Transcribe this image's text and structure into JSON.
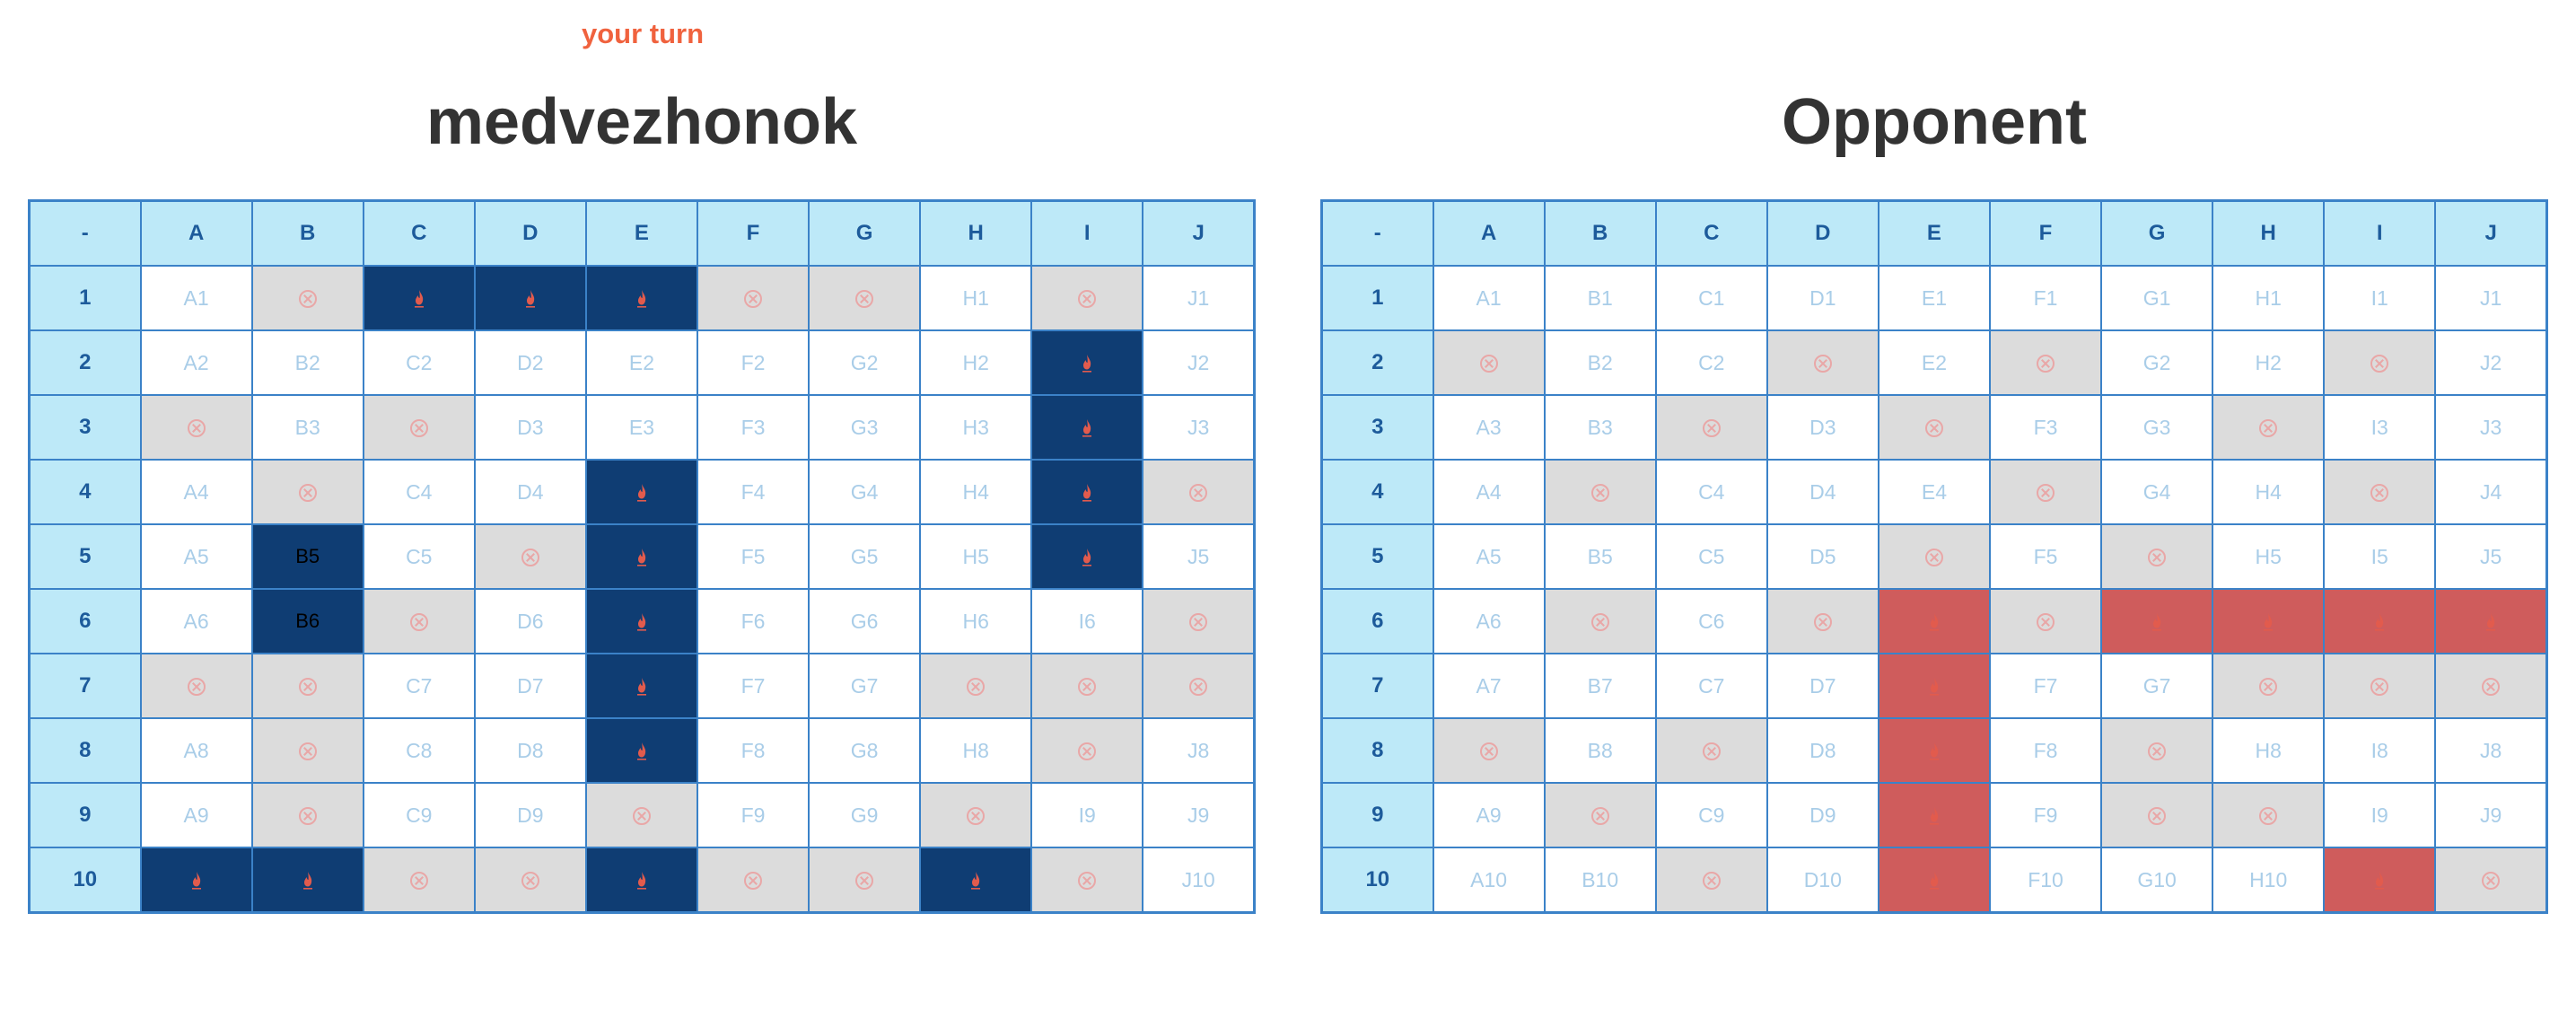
{
  "status": "your turn",
  "columns": [
    "-",
    "A",
    "B",
    "C",
    "D",
    "E",
    "F",
    "G",
    "H",
    "I",
    "J"
  ],
  "rows": [
    "1",
    "2",
    "3",
    "4",
    "5",
    "6",
    "7",
    "8",
    "9",
    "10"
  ],
  "legend_colors": {
    "miss": "#dcdcdc",
    "my_ship": "#0f3d73",
    "enemy_hit": "#cf5c5c",
    "header": "#bde9f8",
    "turn_text": "#f0623e"
  },
  "boards": [
    {
      "title": "medvezhonok",
      "grid": [
        [
          "A1",
          "miss",
          "hit",
          "hit",
          "hit",
          "miss",
          "miss",
          "H1",
          "miss",
          "J1"
        ],
        [
          "A2",
          "B2",
          "C2",
          "D2",
          "E2",
          "F2",
          "G2",
          "H2",
          "hit",
          "J2"
        ],
        [
          "miss",
          "B3",
          "miss",
          "D3",
          "E3",
          "F3",
          "G3",
          "H3",
          "hit",
          "J3"
        ],
        [
          "A4",
          "miss",
          "C4",
          "D4",
          "hit",
          "F4",
          "G4",
          "H4",
          "hit",
          "miss"
        ],
        [
          "A5",
          "ship:B5",
          "C5",
          "miss",
          "hit",
          "F5",
          "G5",
          "H5",
          "hit",
          "J5"
        ],
        [
          "A6",
          "ship:B6",
          "miss",
          "D6",
          "hit",
          "F6",
          "G6",
          "H6",
          "I6",
          "miss"
        ],
        [
          "miss",
          "miss",
          "C7",
          "D7",
          "hit",
          "F7",
          "G7",
          "miss",
          "miss",
          "miss"
        ],
        [
          "A8",
          "miss",
          "C8",
          "D8",
          "hit",
          "F8",
          "G8",
          "H8",
          "miss",
          "J8"
        ],
        [
          "A9",
          "miss",
          "C9",
          "D9",
          "miss",
          "F9",
          "G9",
          "miss",
          "I9",
          "J9"
        ],
        [
          "hit",
          "hit",
          "miss",
          "miss",
          "hit",
          "miss",
          "miss",
          "hit",
          "miss",
          "J10"
        ]
      ]
    },
    {
      "title": "Opponent",
      "grid": [
        [
          "A1",
          "B1",
          "C1",
          "D1",
          "E1",
          "F1",
          "G1",
          "H1",
          "I1",
          "J1"
        ],
        [
          "miss",
          "B2",
          "C2",
          "miss",
          "E2",
          "miss",
          "G2",
          "H2",
          "miss",
          "J2"
        ],
        [
          "A3",
          "B3",
          "miss",
          "D3",
          "miss",
          "F3",
          "G3",
          "miss",
          "I3",
          "J3"
        ],
        [
          "A4",
          "miss",
          "C4",
          "D4",
          "E4",
          "miss",
          "G4",
          "H4",
          "miss",
          "J4"
        ],
        [
          "A5",
          "B5",
          "C5",
          "D5",
          "miss",
          "F5",
          "miss",
          "H5",
          "I5",
          "J5"
        ],
        [
          "A6",
          "miss",
          "C6",
          "miss",
          "hit",
          "miss",
          "hit",
          "hit",
          "hit",
          "hit"
        ],
        [
          "A7",
          "B7",
          "C7",
          "D7",
          "hit",
          "F7",
          "G7",
          "miss",
          "miss",
          "miss"
        ],
        [
          "miss",
          "B8",
          "miss",
          "D8",
          "hit",
          "F8",
          "miss",
          "H8",
          "I8",
          "J8"
        ],
        [
          "A9",
          "miss",
          "C9",
          "D9",
          "hit",
          "F9",
          "miss",
          "miss",
          "I9",
          "J9"
        ],
        [
          "A10",
          "B10",
          "miss",
          "D10",
          "hit",
          "F10",
          "G10",
          "H10",
          "hit",
          "miss"
        ]
      ]
    }
  ]
}
